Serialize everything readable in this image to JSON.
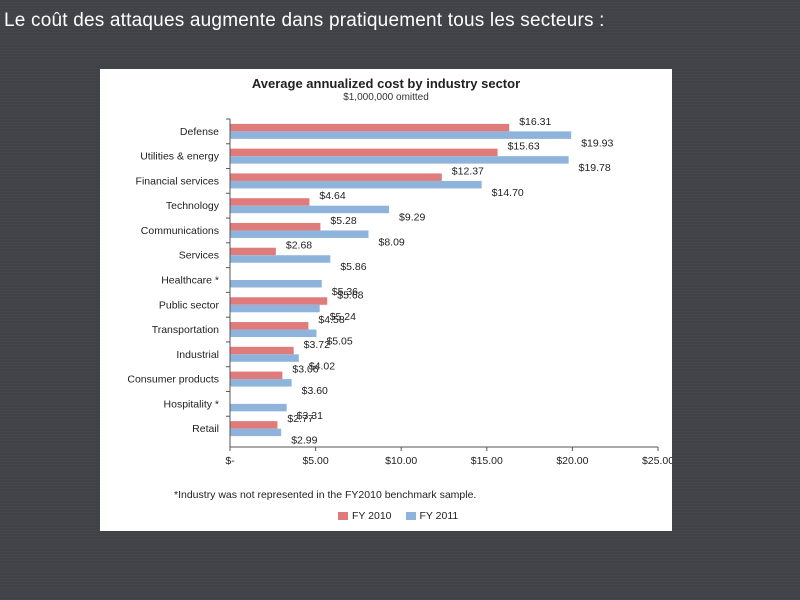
{
  "slide": {
    "title": "Le coût des attaques augmente dans pratiquement tous les secteurs :"
  },
  "chart_data": {
    "type": "bar",
    "orientation": "horizontal",
    "title": "Average annualized cost by industry sector",
    "subtitle": "$1,000,000 omitted",
    "categories": [
      "Defense",
      "Utilities & energy",
      "Financial services",
      "Technology",
      "Communications",
      "Services",
      "Healthcare *",
      "Public sector",
      "Transportation",
      "Industrial",
      "Consumer products",
      "Hospitality *",
      "Retail"
    ],
    "series": [
      {
        "name": "FY 2010",
        "color": "#e07b7b",
        "values": [
          16.31,
          15.63,
          12.37,
          4.64,
          5.28,
          2.68,
          null,
          5.68,
          4.58,
          3.72,
          3.06,
          null,
          2.77
        ],
        "labels": [
          "$16.31",
          "$15.63",
          "$12.37",
          "$4.64",
          "$5.28",
          "$2.68",
          "",
          "$5.68",
          "$4.58",
          "$3.72",
          "$3.06",
          "",
          "$2.77"
        ]
      },
      {
        "name": "FY 2011",
        "color": "#8fb4dc",
        "values": [
          19.93,
          19.78,
          14.7,
          9.29,
          8.09,
          5.86,
          5.36,
          5.24,
          5.05,
          4.02,
          3.6,
          3.31,
          2.99
        ],
        "labels": [
          "$19.93",
          "$19.78",
          "$14.70",
          "$9.29",
          "$8.09",
          "$5.86",
          "$5.36",
          "$5.24",
          "$5.05",
          "$4.02",
          "$3.60",
          "$3.31",
          "$2.99"
        ]
      }
    ],
    "xlim": [
      0,
      25
    ],
    "xticks": [
      0,
      5,
      10,
      15,
      20,
      25
    ],
    "xtick_labels": [
      "$-",
      "$5.00",
      "$10.00",
      "$15.00",
      "$20.00",
      "$25.00"
    ],
    "footnote": "*Industry was not represented in the FY2010 benchmark sample.",
    "legend_position": "bottom",
    "grid": false
  }
}
